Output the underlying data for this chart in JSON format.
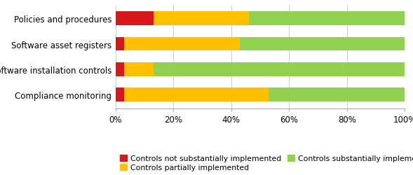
{
  "categories": [
    "Compliance monitoring",
    "Software installation controls",
    "Software asset registers",
    "Policies and procedures"
  ],
  "not_implemented": [
    3,
    3,
    3,
    13
  ],
  "partially_implemented": [
    50,
    10,
    40,
    33
  ],
  "substantially_implemented": [
    47,
    87,
    57,
    54
  ],
  "colors": {
    "not": "#d7191c",
    "partial": "#ffc000",
    "substantial": "#92d050"
  },
  "legend_labels": [
    "Controls not substantially implemented",
    "Controls partially implemented",
    "Controls substantially implemented"
  ],
  "xtick_labels": [
    "0%",
    "20%",
    "40%",
    "60%",
    "80%",
    "100%"
  ],
  "xtick_values": [
    0,
    20,
    40,
    60,
    80,
    100
  ],
  "bar_height": 0.55,
  "label_fontsize": 8.5,
  "tick_fontsize": 8.5,
  "legend_fontsize": 7.8,
  "background_color": "#ffffff"
}
